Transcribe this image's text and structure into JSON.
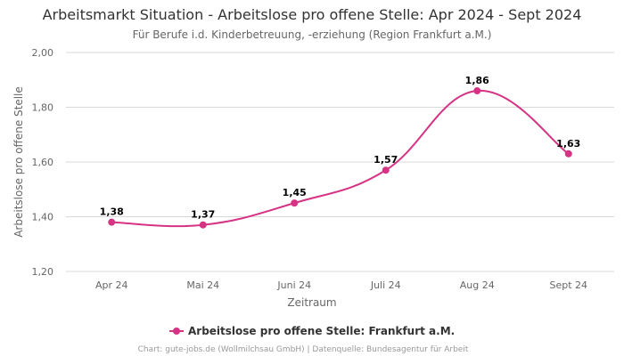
{
  "chart_data": {
    "type": "line",
    "title": "Arbeitsmarkt Situation - Arbeitslose pro offene Stelle: Apr 2024 - Sept 2024",
    "subtitle": "Für Berufe i.d. Kinderbetreuung, -erziehung (Region Frankfurt a.M.)",
    "xlabel": "Zeitraum",
    "ylabel": "Arbeitslose pro offene Stelle",
    "categories": [
      "Apr 24",
      "Mai 24",
      "Juni 24",
      "Juli 24",
      "Aug 24",
      "Sept 24"
    ],
    "ylim": [
      1.2,
      2.0
    ],
    "yticks": [
      "1,20",
      "1,40",
      "1,60",
      "1,80",
      "2,00"
    ],
    "ytick_values": [
      1.2,
      1.4,
      1.6,
      1.8,
      2.0
    ],
    "grid": true,
    "legend_position": "bottom-center",
    "series": [
      {
        "name": "Arbeitslose pro offene Stelle: Frankfurt a.M.",
        "values": [
          1.38,
          1.37,
          1.45,
          1.57,
          1.86,
          1.63
        ],
        "labels": [
          "1,38",
          "1,37",
          "1,45",
          "1,57",
          "1,86",
          "1,63"
        ],
        "color": "#d63384"
      }
    ],
    "credits": "Chart: gute-jobs.de (Wollmilchsau GmbH) | Datenquelle: Bundesagentur für Arbeit"
  }
}
